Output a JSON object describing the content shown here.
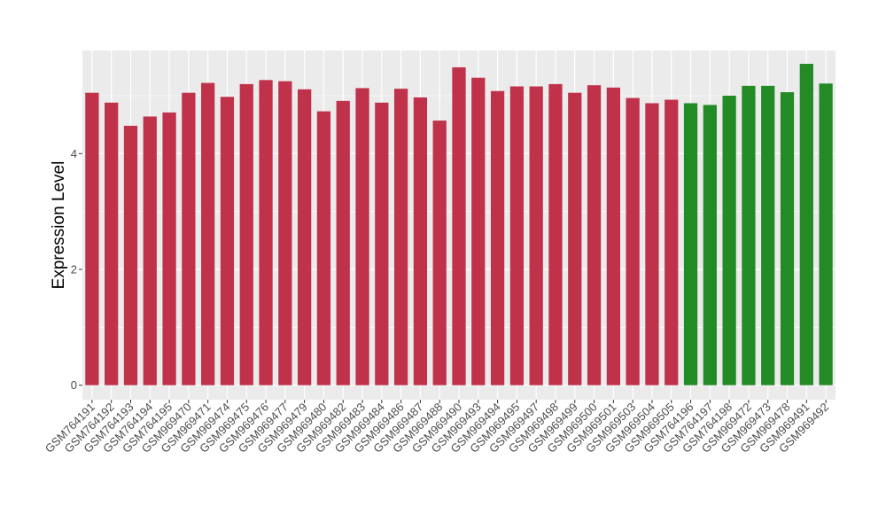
{
  "chart_data": {
    "type": "bar",
    "title": "",
    "xlabel": "",
    "ylabel": "Expression Level",
    "ylim": [
      -0.25,
      5.78
    ],
    "yticks": [
      0,
      2,
      4
    ],
    "grid": true,
    "legend": "none",
    "colors": {
      "group_a": "#c0314a",
      "group_b": "#238b25",
      "panel": "#ebebeb",
      "gridline": "#ffffff"
    },
    "categories": [
      "GSM764191",
      "GSM764192",
      "GSM764193",
      "GSM764194",
      "GSM764195",
      "GSM969470",
      "GSM969471",
      "GSM969474",
      "GSM969475",
      "GSM969476",
      "GSM969477",
      "GSM969479",
      "GSM969480",
      "GSM969482",
      "GSM969483",
      "GSM969484",
      "GSM969486",
      "GSM969487",
      "GSM969488",
      "GSM969490",
      "GSM969493",
      "GSM969494",
      "GSM969495",
      "GSM969497",
      "GSM969498",
      "GSM969499",
      "GSM969500",
      "GSM969501",
      "GSM969503",
      "GSM969504",
      "GSM969505",
      "GSM764196",
      "GSM764197",
      "GSM764198",
      "GSM969472",
      "GSM969473",
      "GSM969478",
      "GSM969491",
      "GSM969492"
    ],
    "values": [
      5.05,
      4.88,
      4.48,
      4.64,
      4.71,
      5.05,
      5.22,
      4.98,
      5.2,
      5.27,
      5.25,
      5.11,
      4.73,
      4.91,
      5.13,
      4.88,
      5.12,
      4.97,
      4.57,
      5.49,
      5.31,
      5.08,
      5.16,
      5.16,
      5.2,
      5.05,
      5.18,
      5.14,
      4.96,
      4.87,
      4.93,
      4.87,
      4.84,
      5.0,
      5.17,
      5.17,
      5.06,
      5.55,
      5.21
    ],
    "groups": [
      "a",
      "a",
      "a",
      "a",
      "a",
      "a",
      "a",
      "a",
      "a",
      "a",
      "a",
      "a",
      "a",
      "a",
      "a",
      "a",
      "a",
      "a",
      "a",
      "a",
      "a",
      "a",
      "a",
      "a",
      "a",
      "a",
      "a",
      "a",
      "a",
      "a",
      "a",
      "b",
      "b",
      "b",
      "b",
      "b",
      "b",
      "b",
      "b"
    ]
  }
}
